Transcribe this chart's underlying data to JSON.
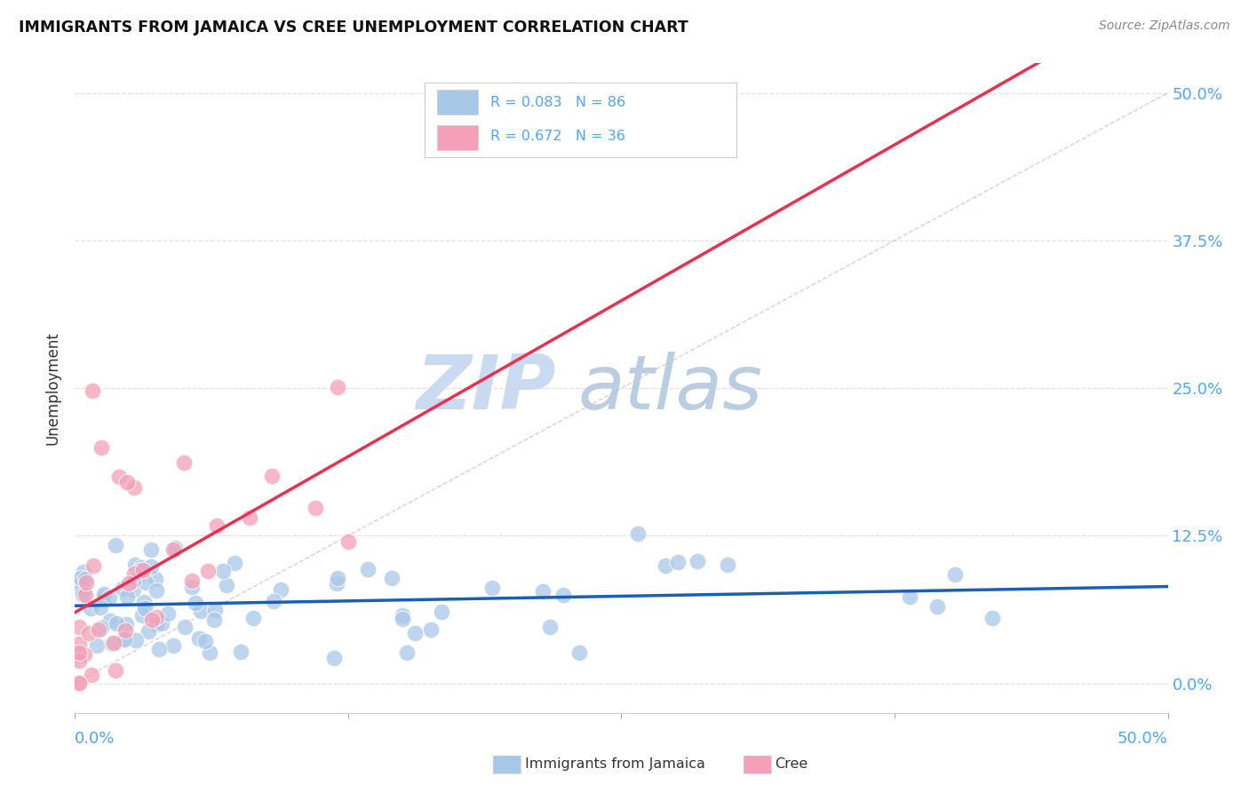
{
  "title": "IMMIGRANTS FROM JAMAICA VS CREE UNEMPLOYMENT CORRELATION CHART",
  "source": "Source: ZipAtlas.com",
  "ylabel": "Unemployment",
  "legend_label1": "Immigrants from Jamaica",
  "legend_label2": "Cree",
  "legend_r1": "0.083",
  "legend_n1": "86",
  "legend_r2": "0.672",
  "legend_n2": "36",
  "color_jamaica": "#a8c8e8",
  "color_cree": "#f4a0b8",
  "line_color_jamaica": "#1a5fb4",
  "line_color_cree": "#e83050",
  "diagonal_color": "#d0d0d0",
  "watermark_zip_color": "#c8d8f0",
  "watermark_atlas_color": "#b8cce0",
  "background_color": "#ffffff",
  "grid_color": "#e0e0e0",
  "right_axis_color": "#4da6ff",
  "xlim": [
    0.0,
    0.5
  ],
  "ylim": [
    -0.025,
    0.525
  ],
  "ytick_vals": [
    0.0,
    0.125,
    0.25,
    0.375,
    0.5
  ],
  "ytick_labels": [
    "0.0%",
    "12.5%",
    "25.0%",
    "37.5%",
    "50.0%"
  ],
  "xtick_vals": [
    0.0,
    0.125,
    0.25,
    0.375,
    0.5
  ]
}
